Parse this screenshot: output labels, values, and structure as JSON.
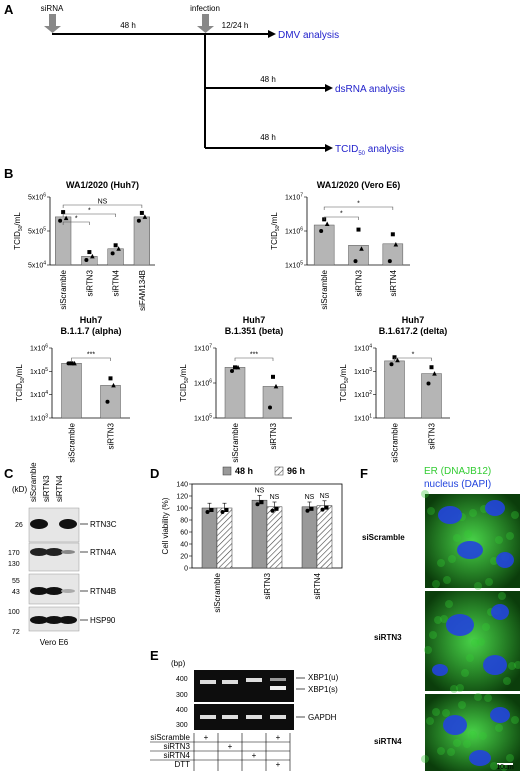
{
  "panelA": {
    "letter": "A",
    "sirna": "siRNA",
    "infection": "infection",
    "t1": "48 h",
    "t2": "12/24 h",
    "t3": "48 h",
    "t4": "48 h",
    "out1": "DMV analysis",
    "out2": "dsRNA analysis",
    "out3": "TCID",
    "out3_sub": "50",
    "out3_tail": " analysis"
  },
  "panelB": {
    "letter": "B",
    "ylabel_main": "TCID",
    "ylabel_sub": "50",
    "ylabel_tail": "/mL",
    "sig": {
      "ns": "NS",
      "star1": "*",
      "star3": "***"
    }
  },
  "chart_data": [
    {
      "type": "bar",
      "title": "WA1/2020 (Huh7)",
      "ylabel": "TCID50/mL",
      "yscale": "log",
      "ylim": [
        50000,
        5000000
      ],
      "yticks": [
        "5x10",
        "5x10",
        "5x10"
      ],
      "ytick_exp": [
        "6",
        "5",
        "4"
      ],
      "categories": [
        "siScramble",
        "siRTN3",
        "siRTN4",
        "siFAM134B"
      ],
      "values": [
        1300000,
        90000,
        150000,
        1300000
      ],
      "points": [
        [
          1000000,
          1800000,
          1200000
        ],
        [
          70000,
          120000,
          90000
        ],
        [
          110000,
          190000,
          150000
        ],
        [
          1000000,
          1700000,
          1300000
        ]
      ]
    },
    {
      "type": "bar",
      "title": "WA1/2020 (Vero E6)",
      "ylabel": "TCID50/mL",
      "yscale": "log",
      "ylim": [
        100000,
        10000000
      ],
      "yticks": [
        "1x10",
        "1x10",
        "1x10"
      ],
      "ytick_exp": [
        "7",
        "6",
        "5"
      ],
      "categories": [
        "siScramble",
        "siRTN3",
        "siRTN4"
      ],
      "values": [
        1500000,
        380000,
        420000
      ],
      "points": [
        [
          1000000,
          2200000,
          1600000
        ],
        [
          130000,
          1100000,
          300000
        ],
        [
          130000,
          800000,
          400000
        ]
      ]
    },
    {
      "type": "bar",
      "title": "Huh7",
      "subtitle": "B.1.1.7 (alpha)",
      "ylabel": "TCID50/mL",
      "yscale": "log",
      "ylim": [
        1000,
        1000000
      ],
      "yticks": [
        "1x10",
        "1x10",
        "1x10",
        "1x10"
      ],
      "ytick_exp": [
        "6",
        "5",
        "4",
        "3"
      ],
      "categories": [
        "siScramble",
        "siRTN3"
      ],
      "values": [
        220000,
        25000
      ],
      "points": [
        [
          220000,
          220000,
          220000
        ],
        [
          5000,
          50000,
          25000
        ]
      ]
    },
    {
      "type": "bar",
      "title": "Huh7",
      "subtitle": "B.1.351 (beta)",
      "ylabel": "TCID50/mL",
      "yscale": "log",
      "ylim": [
        100000,
        10000000
      ],
      "yticks": [
        "1x10",
        "1x10",
        "1x10"
      ],
      "ytick_exp": [
        "7",
        "6",
        "5"
      ],
      "categories": [
        "siScramble",
        "siRTN3"
      ],
      "values": [
        2800000,
        800000
      ],
      "points": [
        [
          2200000,
          2800000,
          2800000
        ],
        [
          200000,
          1500000,
          800000
        ]
      ]
    },
    {
      "type": "bar",
      "title": "Huh7",
      "subtitle": "B.1.617.2 (delta)",
      "ylabel": "TCID50/mL",
      "yscale": "log",
      "ylim": [
        10,
        10000
      ],
      "yticks": [
        "1x10",
        "1x10",
        "1x10",
        "1x10"
      ],
      "ytick_exp": [
        "4",
        "3",
        "2",
        "1"
      ],
      "categories": [
        "siScramble",
        "siRTN3"
      ],
      "values": [
        2800,
        800
      ],
      "points": [
        [
          2000,
          4000,
          3000
        ],
        [
          300,
          1500,
          800
        ]
      ]
    },
    {
      "type": "bar",
      "title": "",
      "ylabel": "Cell viability (%)",
      "ylim": [
        0,
        140
      ],
      "yticks": [
        "0",
        "20",
        "40",
        "60",
        "80",
        "100",
        "120",
        "140"
      ],
      "categories": [
        "siScramble",
        "siRTN3",
        "siRTN4"
      ],
      "series": [
        {
          "name": "48 h",
          "values": [
            100,
            113,
            102
          ]
        },
        {
          "name": "96 h",
          "values": [
            100,
            102,
            104
          ]
        }
      ],
      "significance": [
        "",
        "NS",
        "NS"
      ],
      "legend": "top"
    }
  ],
  "panelC": {
    "letter": "C",
    "kd": "(kD)",
    "lanes": [
      "siScramble",
      "siRTN3",
      "siRTN4"
    ],
    "markers": [
      "26",
      "170",
      "130",
      "55",
      "43",
      "100",
      "72"
    ],
    "bands": [
      "RTN3C",
      "RTN4A",
      "RTN4B",
      "HSP90"
    ],
    "cell": "Vero E6"
  },
  "panelD": {
    "letter": "D"
  },
  "panelE": {
    "letter": "E",
    "bp": "(bp)",
    "markers": [
      "400",
      "300",
      "400",
      "300"
    ],
    "bands": [
      "XBP1(u)",
      "XBP1(s)",
      "GAPDH"
    ],
    "rows": [
      "siScramble",
      "siRTN3",
      "siRTN4",
      "DTT"
    ],
    "plus": "+"
  },
  "panelF": {
    "letter": "F",
    "er_label": "ER (DNAJB12)",
    "nuc_label": "nucleus (DAPI)",
    "rows": [
      "siScramble",
      "siRTN3",
      "siRTN4"
    ],
    "scale": "10um",
    "colors": {
      "er": "#33cc33",
      "nucleus": "#2244dd"
    }
  }
}
